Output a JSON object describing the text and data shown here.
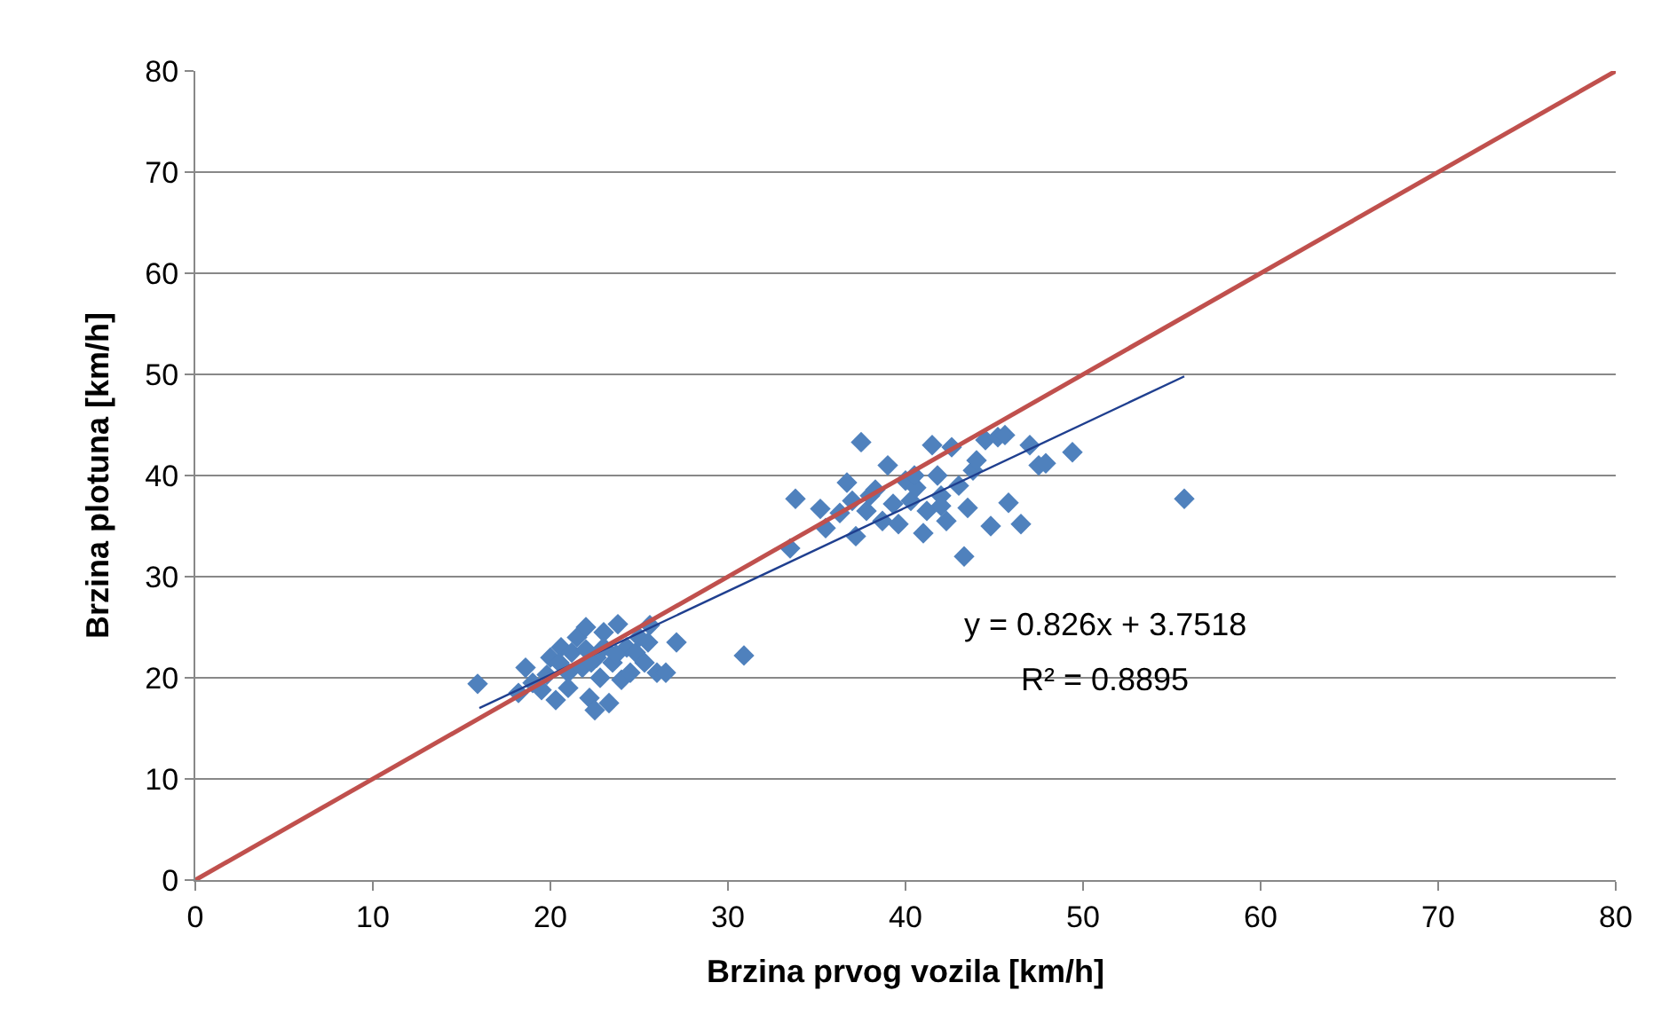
{
  "chart_data": {
    "type": "scatter",
    "xlabel": "Brzina prvog vozila [km/h]",
    "ylabel": "Brzina plotuna [km/h]",
    "xlim": [
      0,
      80
    ],
    "ylim": [
      0,
      80
    ],
    "xticks": [
      0,
      10,
      20,
      30,
      40,
      50,
      60,
      70,
      80
    ],
    "yticks": [
      0,
      10,
      20,
      30,
      40,
      50,
      60,
      70,
      80
    ],
    "grid": "y",
    "annotations": [
      "y = 0.826x + 3.7518",
      "R² = 0.8895"
    ],
    "series": [
      {
        "marker": "diamond",
        "color": "#4f81bd",
        "x": [
          15.9,
          18.2,
          18.6,
          19,
          19.5,
          20,
          20.3,
          20.6,
          21,
          21.2,
          21.5,
          21.8,
          22,
          22.2,
          22.5,
          22.6,
          22.8,
          23,
          23.3,
          23.5,
          23.8,
          24,
          24.3,
          24.5,
          24.8,
          25,
          25.3,
          25.6,
          26,
          26.5,
          27.1,
          22,
          23,
          21,
          20.5,
          30.9,
          19.8,
          22.3,
          23.7,
          25.5,
          33.5,
          33.8,
          35.2,
          35.5,
          36.3,
          36.7,
          37,
          37.2,
          37.5,
          37.8,
          38.3,
          38.7,
          39,
          39.3,
          39.6,
          40,
          40.3,
          40.6,
          41,
          41.2,
          41.5,
          41.8,
          42,
          42.3,
          42.6,
          43,
          43.3,
          43.5,
          43.8,
          44,
          44.5,
          44.8,
          45.2,
          45.6,
          45.8,
          46.5,
          47,
          47.5,
          47.9,
          49.4,
          55.7,
          40.5,
          38,
          42
        ],
        "values": [
          19.4,
          18.5,
          21,
          19.5,
          18.8,
          22,
          17.8,
          23,
          20.5,
          22.5,
          24,
          21,
          25,
          18,
          16.8,
          22,
          20,
          24.5,
          17.5,
          21.5,
          25.3,
          19.8,
          23,
          20.5,
          22.5,
          24,
          21.5,
          25.2,
          20.5,
          20.5,
          23.5,
          22.8,
          23,
          19,
          21.5,
          22.2,
          20.3,
          21.5,
          22.3,
          23.5,
          32.8,
          37.7,
          36.7,
          34.8,
          36.3,
          39.3,
          37.5,
          34,
          43.3,
          36.5,
          38.6,
          35.5,
          41,
          37.2,
          35.2,
          39.5,
          37.5,
          38.8,
          34.3,
          36.5,
          43,
          40,
          38,
          35.5,
          42.8,
          39,
          32,
          36.8,
          40.5,
          41.5,
          43.5,
          35,
          43.8,
          44,
          37.3,
          35.2,
          43,
          41,
          41.2,
          42.3,
          37.7,
          40,
          38,
          37
        ]
      },
      {
        "type": "line",
        "marker": "none",
        "color": "#1f3f8f",
        "x": [
          16,
          55.7
        ],
        "values": [
          17.0,
          49.8
        ]
      },
      {
        "type": "line",
        "marker": "none",
        "color": "#c0504d",
        "x": [
          0,
          80
        ],
        "values": [
          0,
          80
        ]
      }
    ]
  }
}
